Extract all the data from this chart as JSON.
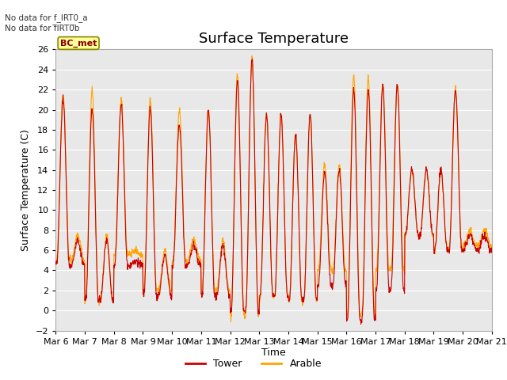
{
  "title": "Surface Temperature",
  "ylabel": "Surface Temperature (C)",
  "xlabel": "Time",
  "ylim": [
    -2,
    26
  ],
  "yticks": [
    -2,
    0,
    2,
    4,
    6,
    8,
    10,
    12,
    14,
    16,
    18,
    20,
    22,
    24,
    26
  ],
  "xtick_labels": [
    "Mar 6",
    "Mar 7",
    "Mar 8",
    "Mar 9",
    "Mar 10",
    "Mar 11",
    "Mar 12",
    "Mar 13",
    "Mar 14",
    "Mar 15",
    "Mar 16",
    "Mar 17",
    "Mar 18",
    "Mar 19",
    "Mar 20",
    "Mar 21"
  ],
  "tower_color": "#cc0000",
  "arable_color": "#ffa500",
  "bg_color": "#e8e8e8",
  "fig_bg_color": "#ffffff",
  "legend_box_color": "#ffff99",
  "legend_box_edge": "#888800",
  "legend_box_text": "BC_met",
  "no_data_text1": "No data for f_IRT0_a",
  "no_data_text2": "No data for f̅IRT0̅b",
  "title_fontsize": 13,
  "label_fontsize": 9,
  "tick_fontsize": 8,
  "days": 15,
  "n_points": 1440,
  "peaks_per_day": 2,
  "peak_times": [
    0.25,
    0.75
  ],
  "day_peaks_tower": [
    21.0,
    20.0,
    20.5,
    20.2,
    18.5,
    20.0,
    23.0,
    19.5,
    17.5,
    13.8,
    22.0,
    22.5,
    14.0,
    14.0,
    7.5
  ],
  "day_peaks2_tower": [
    7.0,
    7.0,
    5.0,
    5.5,
    6.5,
    6.5,
    25.0,
    19.5,
    19.5,
    14.0,
    22.0,
    22.5,
    14.0,
    22.0,
    7.5
  ],
  "day_mins_tower": [
    4.5,
    1.0,
    4.5,
    1.5,
    4.5,
    1.5,
    0.0,
    1.5,
    1.0,
    2.5,
    -1.0,
    2.0,
    7.5,
    6.0,
    6.0
  ],
  "day_peaks_arable": [
    21.5,
    22.0,
    21.0,
    21.0,
    20.0,
    20.0,
    23.5,
    19.5,
    17.5,
    14.5,
    23.5,
    22.5,
    14.0,
    14.0,
    8.0
  ],
  "day_peaks2_arable": [
    7.5,
    7.5,
    6.0,
    6.0,
    7.0,
    7.0,
    25.0,
    19.5,
    19.5,
    14.5,
    23.5,
    22.5,
    14.0,
    22.0,
    8.0
  ],
  "day_mins_arable": [
    5.0,
    1.0,
    5.5,
    2.0,
    5.0,
    2.0,
    -0.5,
    1.5,
    1.0,
    4.0,
    -0.5,
    4.0,
    7.5,
    6.0,
    6.5
  ]
}
